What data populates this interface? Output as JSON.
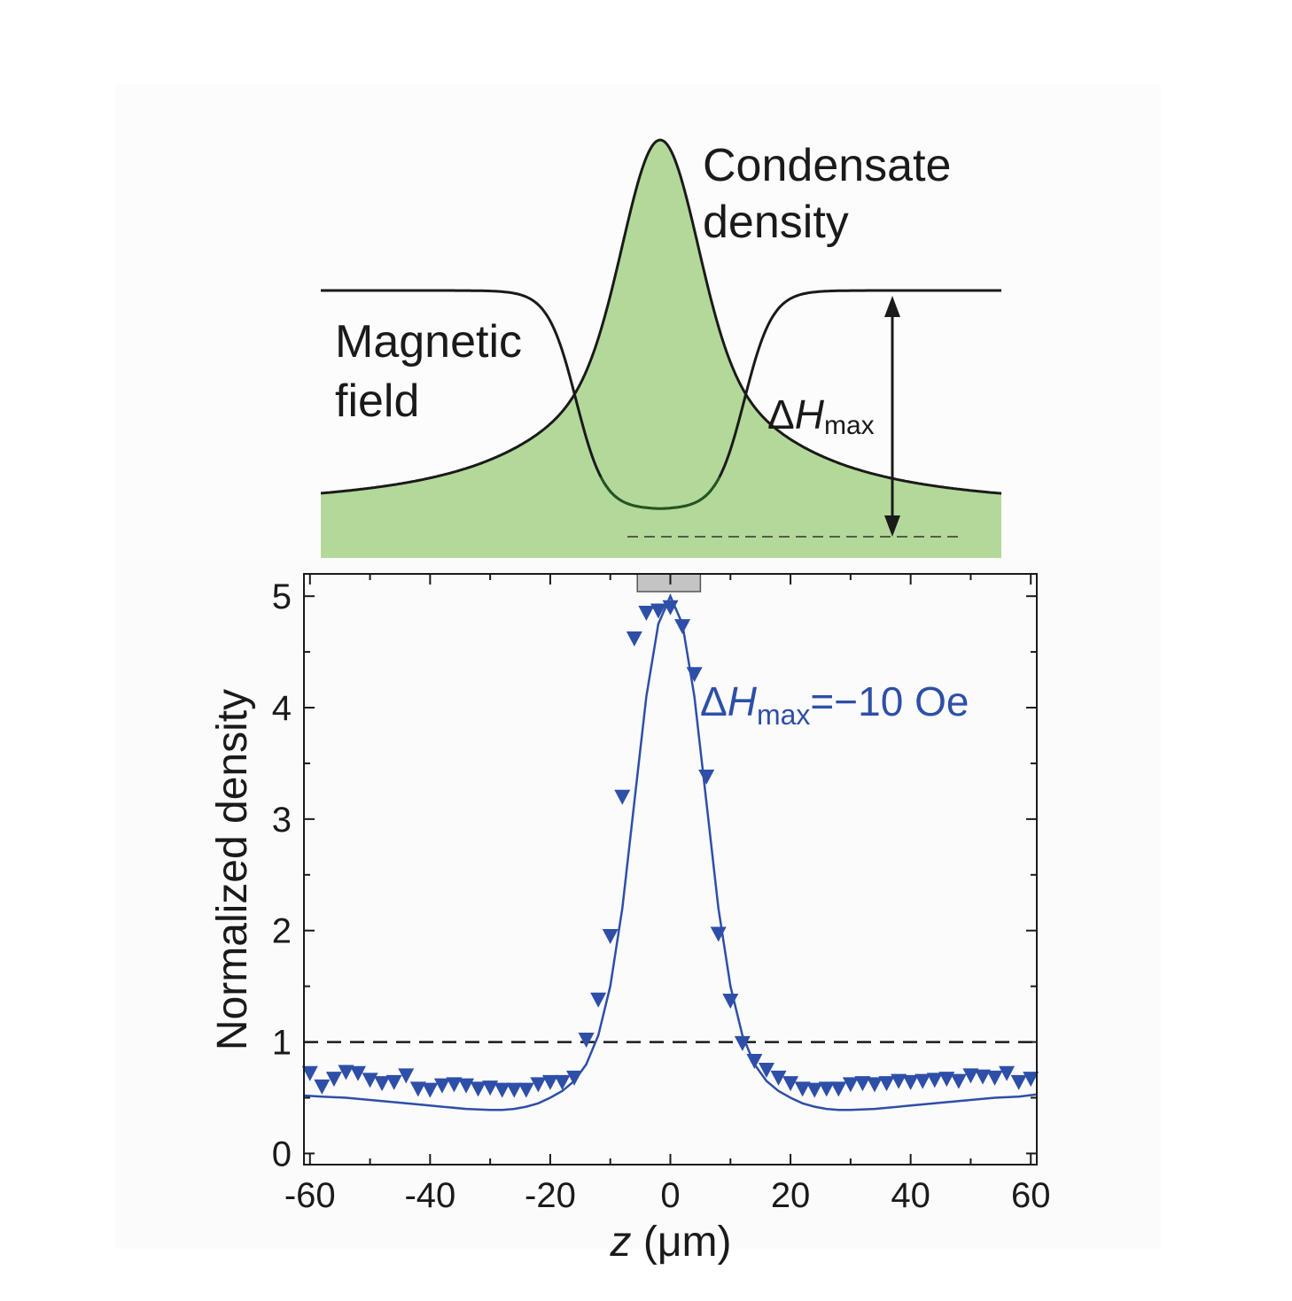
{
  "schematic": {
    "condensate_label_line1": "Condensate",
    "condensate_label_line2": "density",
    "field_label_line1": "Magnetic",
    "field_label_line2": "field",
    "delta_symbol": "Δ",
    "h_symbol": "H",
    "max_subscript": "max",
    "fill_color": "#b3d99a",
    "curve_color": "#1a1a1a"
  },
  "chart_data": {
    "type": "scatter",
    "title": "",
    "xlabel_var": "z",
    "xlabel_unit": " (μm)",
    "ylabel": "Normalized density",
    "xlim": [
      -61,
      61
    ],
    "ylim": [
      -0.1,
      5.2
    ],
    "xticks": [
      -60,
      -40,
      -20,
      0,
      20,
      40,
      60
    ],
    "xtick_labels": [
      "-60",
      "-40",
      "-20",
      "0",
      "20",
      "40",
      "60"
    ],
    "yticks": [
      0,
      1,
      2,
      3,
      4,
      5
    ],
    "ytick_labels": [
      "0",
      "1",
      "2",
      "3",
      "4",
      "5"
    ],
    "reference_line_y": 1,
    "shaded_region_x": [
      -5.5,
      5
    ],
    "color": "#2e4fa8",
    "annotation": {
      "delta": "Δ",
      "h": "H",
      "sub": "max",
      "rest": "=−10 Oe"
    },
    "series": [
      {
        "name": "measured",
        "marker": "triangle-down",
        "x": [
          -60,
          -58,
          -56,
          -54,
          -52,
          -50,
          -48,
          -46,
          -44,
          -42,
          -40,
          -38,
          -36,
          -34,
          -32,
          -30,
          -28,
          -26,
          -24,
          -22,
          -20,
          -18,
          -16,
          -14,
          -12,
          -10,
          -8,
          -6,
          -4,
          -2,
          0,
          2,
          4,
          6,
          8,
          10,
          12,
          14,
          16,
          18,
          20,
          22,
          24,
          26,
          28,
          30,
          32,
          34,
          36,
          38,
          40,
          42,
          44,
          46,
          48,
          50,
          52,
          54,
          56,
          58,
          60
        ],
        "y": [
          0.72,
          0.6,
          0.67,
          0.73,
          0.72,
          0.66,
          0.63,
          0.64,
          0.7,
          0.58,
          0.57,
          0.61,
          0.62,
          0.61,
          0.58,
          0.59,
          0.57,
          0.57,
          0.57,
          0.62,
          0.64,
          0.64,
          0.68,
          1.02,
          1.38,
          1.95,
          3.2,
          4.62,
          4.85,
          4.87,
          4.9,
          4.73,
          4.3,
          3.38,
          1.97,
          1.37,
          0.99,
          0.83,
          0.75,
          0.68,
          0.63,
          0.58,
          0.57,
          0.58,
          0.58,
          0.62,
          0.63,
          0.62,
          0.63,
          0.65,
          0.64,
          0.65,
          0.66,
          0.67,
          0.65,
          0.7,
          0.69,
          0.68,
          0.72,
          0.64,
          0.67
        ]
      },
      {
        "name": "fit",
        "marker": "line",
        "x": [
          -61,
          -58,
          -54,
          -50,
          -46,
          -42,
          -38,
          -34,
          -30,
          -28,
          -26,
          -24,
          -22,
          -20,
          -18,
          -16,
          -14,
          -12,
          -10,
          -8,
          -6,
          -4,
          -2,
          0,
          2,
          4,
          6,
          8,
          10,
          12,
          14,
          16,
          18,
          20,
          22,
          24,
          26,
          28,
          30,
          34,
          38,
          42,
          46,
          50,
          54,
          58,
          61
        ],
        "y": [
          0.52,
          0.51,
          0.5,
          0.48,
          0.46,
          0.44,
          0.42,
          0.4,
          0.39,
          0.39,
          0.4,
          0.42,
          0.45,
          0.5,
          0.56,
          0.65,
          0.8,
          1.06,
          1.5,
          2.2,
          3.15,
          4.1,
          4.75,
          5.0,
          4.75,
          4.1,
          3.15,
          2.2,
          1.5,
          1.06,
          0.8,
          0.65,
          0.56,
          0.5,
          0.45,
          0.42,
          0.4,
          0.39,
          0.39,
          0.4,
          0.42,
          0.44,
          0.46,
          0.48,
          0.5,
          0.51,
          0.53
        ]
      }
    ]
  }
}
